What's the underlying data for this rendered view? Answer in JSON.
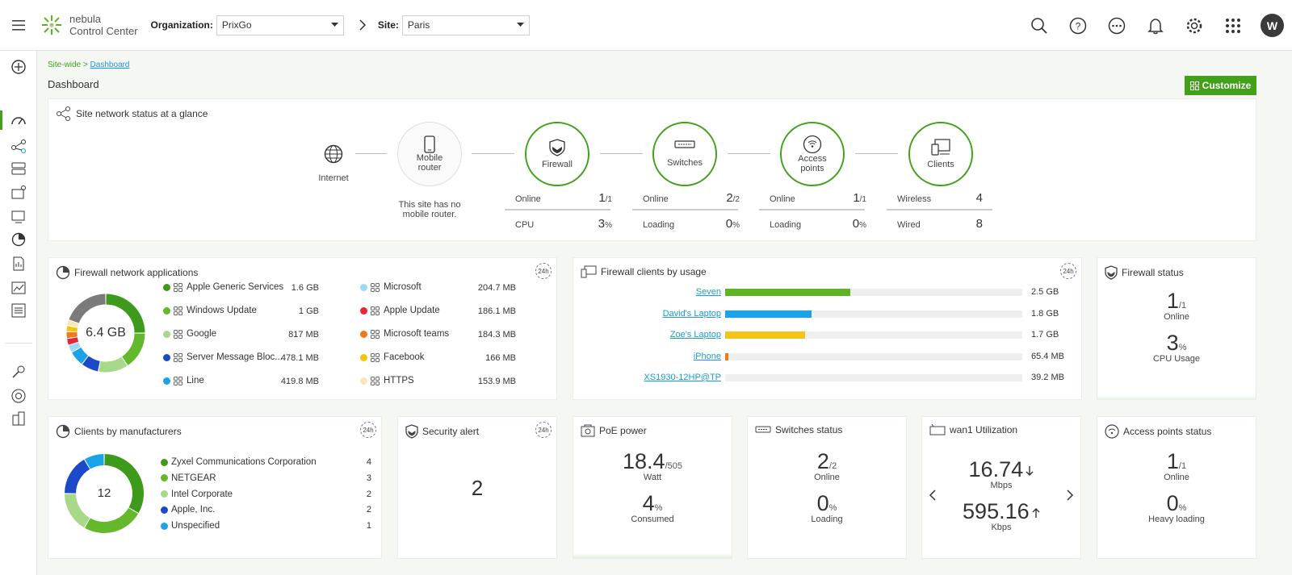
{
  "header": {
    "logo_line1": "nebula",
    "logo_line2": "Control Center",
    "org_label": "Organization:",
    "org_value": "PrixGo",
    "site_label": "Site:",
    "site_value": "Paris",
    "avatar": "W"
  },
  "breadcrumb": {
    "prefix": "Site-wide >",
    "link": "Dashboard"
  },
  "page_title": "Dashboard",
  "customize_label": "Customize",
  "glance": {
    "title": "Site network status at a glance",
    "internet": "Internet",
    "mobile_router_l1": "Mobile",
    "mobile_router_l2": "router",
    "mobile_note_l1": "This site has no",
    "mobile_note_l2": "mobile router.",
    "firewall": "Firewall",
    "switches": "Switches",
    "ap_l1": "Access",
    "ap_l2": "points",
    "clients": "Clients",
    "fw_online_label": "Online",
    "fw_online_val": "1",
    "fw_online_tot": "/1",
    "fw_cpu_label": "CPU",
    "fw_cpu_val": "3",
    "fw_cpu_unit": "%",
    "sw_online_label": "Online",
    "sw_online_val": "2",
    "sw_online_tot": "/2",
    "sw_load_label": "Loading",
    "sw_load_val": "0",
    "sw_load_unit": "%",
    "ap_online_label": "Online",
    "ap_online_val": "1",
    "ap_online_tot": "/1",
    "ap_load_label": "Loading",
    "ap_load_val": "0",
    "ap_load_unit": "%",
    "cl_wireless_label": "Wireless",
    "cl_wireless_val": "4",
    "cl_wired_label": "Wired",
    "cl_wired_val": "8"
  },
  "fw_apps": {
    "title": "Firewall network applications",
    "badge": "24h",
    "total": "6.4 GB",
    "left": [
      {
        "name": "Apple Generic Services",
        "value": "1.6 GB",
        "color": "#3d9a1b"
      },
      {
        "name": "Windows Update",
        "value": "1 GB",
        "color": "#64b82c"
      },
      {
        "name": "Google",
        "value": "817 MB",
        "color": "#a8d88a"
      },
      {
        "name": "Server Message Bloc...",
        "value": "478.1 MB",
        "color": "#1c49c8"
      },
      {
        "name": "Line",
        "value": "419.8 MB",
        "color": "#1aa3e8"
      }
    ],
    "right": [
      {
        "name": "Microsoft",
        "value": "204.7 MB",
        "color": "#9fd8f2"
      },
      {
        "name": "Apple Update",
        "value": "186.1 MB",
        "color": "#e8263a"
      },
      {
        "name": "Microsoft teams",
        "value": "184.3 MB",
        "color": "#ee7a1b"
      },
      {
        "name": "Facebook",
        "value": "166 MB",
        "color": "#f2c40f"
      },
      {
        "name": "HTTPS",
        "value": "153.9 MB",
        "color": "#fbe7b5"
      }
    ]
  },
  "fw_clients": {
    "title": "Firewall clients by usage",
    "badge": "24h",
    "rows": [
      {
        "name": "Seven",
        "value": "2.5 GB",
        "fraction": 0.42,
        "color": "#5cb51e"
      },
      {
        "name": "David's Laptop",
        "value": "1.8 GB",
        "fraction": 0.29,
        "color": "#1aa3e8"
      },
      {
        "name": "Zoe's Laptop",
        "value": "1.7 GB",
        "fraction": 0.27,
        "color": "#f5c218"
      },
      {
        "name": "iPhone",
        "value": "65.4 MB",
        "fraction": 0.012,
        "color": "#ee7a1b"
      },
      {
        "name": "XS1930-12HP@TP",
        "value": "39.2 MB",
        "fraction": 0.0,
        "color": "#ee7a1b"
      }
    ]
  },
  "fw_status": {
    "title": "Firewall status",
    "online_val": "1",
    "online_tot": "/1",
    "online_label": "Online",
    "cpu_val": "3",
    "cpu_unit": "%",
    "cpu_label": "CPU Usage"
  },
  "manufacturers": {
    "title": "Clients by manufacturers",
    "badge": "24h",
    "total": "12",
    "items": [
      {
        "name": "Zyxel Communications Corporation",
        "value": "4",
        "color": "#3d9a1b"
      },
      {
        "name": "NETGEAR",
        "value": "3",
        "color": "#64b82c"
      },
      {
        "name": "Intel Corporate",
        "value": "2",
        "color": "#a8d88a"
      },
      {
        "name": "Apple, Inc.",
        "value": "2",
        "color": "#1c49c8"
      },
      {
        "name": "Unspecified",
        "value": "1",
        "color": "#1aa3e8"
      }
    ]
  },
  "security": {
    "title": "Security alert",
    "badge": "24h",
    "value": "2"
  },
  "poe": {
    "title": "PoE power",
    "watt_val": "18.4",
    "watt_tot": "/505",
    "watt_label": "Watt",
    "cons_val": "4",
    "cons_unit": "%",
    "cons_label": "Consumed"
  },
  "switches_status": {
    "title": "Switches status",
    "online_val": "2",
    "online_tot": "/2",
    "online_label": "Online",
    "load_val": "0",
    "load_unit": "%",
    "load_label": "Loading"
  },
  "wan": {
    "title": "wan1 Utilization",
    "down_val": "16.74",
    "down_unit": "Mbps",
    "up_val": "595.16",
    "up_unit": "Kbps"
  },
  "ap_status": {
    "title": "Access points status",
    "online_val": "1",
    "online_tot": "/1",
    "online_label": "Online",
    "load_val": "0",
    "load_unit": "%",
    "load_label": "Heavy loading"
  }
}
